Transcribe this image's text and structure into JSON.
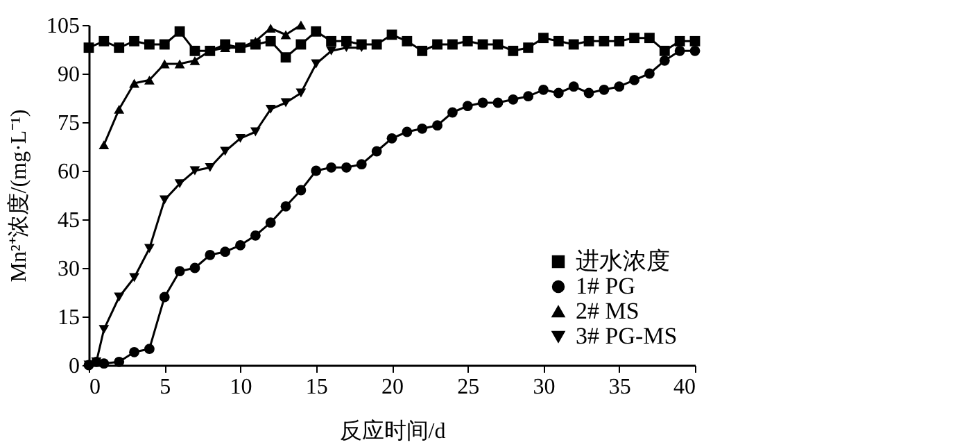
{
  "chart_data": {
    "type": "line",
    "xlabel": "反应时间/d",
    "ylabel": "Mn²⁺浓度/(mg·L⁻¹)",
    "xlim": [
      0,
      40
    ],
    "ylim": [
      0,
      105
    ],
    "xticks": [
      0,
      5,
      10,
      15,
      20,
      25,
      30,
      35,
      40
    ],
    "yticks": [
      0,
      15,
      30,
      45,
      60,
      75,
      90,
      105
    ],
    "grid": false,
    "legend": "bottom right",
    "line_style": "solid",
    "series": [
      {
        "name": "进水浓度",
        "color": "#000000",
        "marker": "square",
        "x": [
          0,
          1,
          2,
          3,
          4,
          5,
          6,
          7,
          8,
          9,
          10,
          11,
          12,
          13,
          14,
          15,
          16,
          17,
          18,
          19,
          20,
          21,
          22,
          23,
          24,
          25,
          26,
          27,
          28,
          29,
          30,
          31,
          32,
          33,
          34,
          35,
          36,
          37,
          38,
          39,
          40
        ],
        "values": [
          98,
          100,
          98,
          100,
          99,
          99,
          103,
          97,
          97,
          99,
          98,
          99,
          100,
          95,
          99,
          103,
          100,
          100,
          99,
          99,
          102,
          100,
          97,
          99,
          99,
          100,
          99,
          99,
          97,
          98,
          101,
          100,
          99,
          100,
          100,
          100,
          101,
          101,
          97,
          100,
          100
        ]
      },
      {
        "name": "1# PG",
        "color": "#000000",
        "marker": "circle",
        "x": [
          0,
          0.5,
          1,
          2,
          3,
          4,
          5,
          6,
          7,
          8,
          9,
          10,
          11,
          12,
          13,
          14,
          15,
          16,
          17,
          18,
          19,
          20,
          21,
          22,
          23,
          24,
          25,
          26,
          27,
          28,
          29,
          30,
          31,
          32,
          33,
          34,
          35,
          36,
          37,
          38,
          39,
          40
        ],
        "values": [
          0,
          1,
          0.5,
          1,
          4,
          5,
          21,
          29,
          30,
          34,
          35,
          37,
          40,
          44,
          49,
          54,
          60,
          61,
          61,
          62,
          66,
          70,
          72,
          73,
          74,
          78,
          80,
          81,
          81,
          82,
          83,
          85,
          84,
          86,
          84,
          85,
          86,
          88,
          90,
          94,
          97,
          97
        ]
      },
      {
        "name": "2#  MS",
        "color": "#000000",
        "marker": "triangle",
        "x": [
          1,
          2,
          3,
          4,
          5,
          6,
          7,
          8,
          9,
          10,
          11,
          12,
          13,
          14
        ],
        "values": [
          68,
          79,
          87,
          88,
          93,
          93,
          94,
          97,
          98,
          98,
          100,
          104,
          102,
          105
        ]
      },
      {
        "name": "3# PG-MS",
        "color": "#000000",
        "marker": "triangle-down",
        "x": [
          0,
          0.5,
          1,
          2,
          3,
          4,
          5,
          6,
          7,
          8,
          9,
          10,
          11,
          12,
          13,
          14,
          15,
          16,
          17,
          18
        ],
        "values": [
          0,
          1,
          11,
          21,
          27,
          36,
          51,
          56,
          60,
          61,
          66,
          70,
          72,
          79,
          81,
          84,
          93,
          97,
          98,
          98
        ]
      }
    ]
  }
}
